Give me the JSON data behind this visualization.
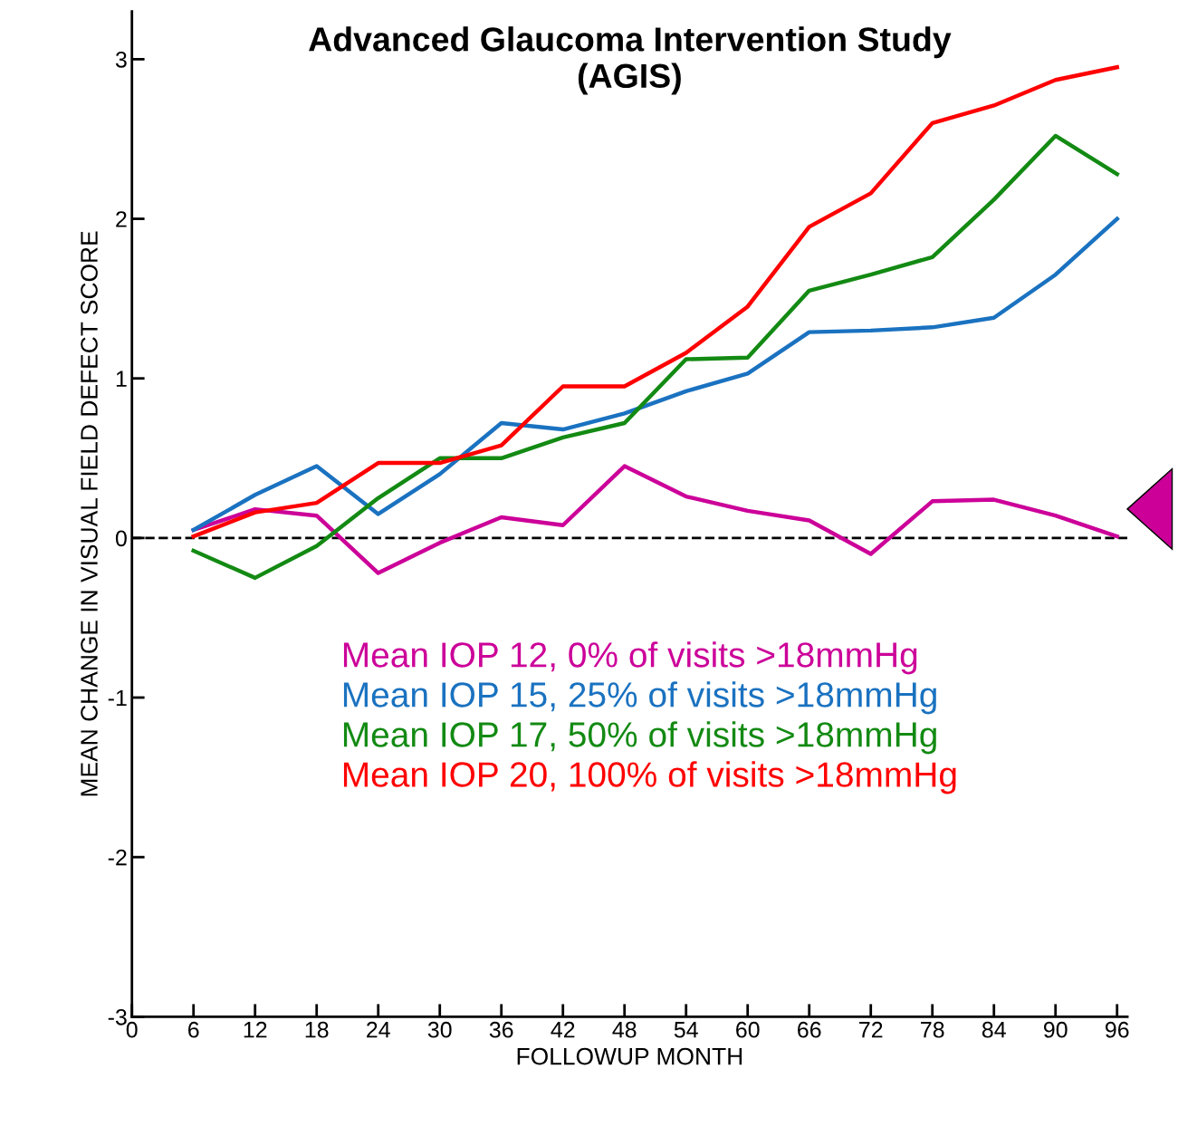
{
  "chart_data": {
    "type": "line",
    "title": "Advanced Glaucoma Intervention Study\n(AGIS)",
    "xlabel": "FOLLOWUP MONTH",
    "ylabel": "MEAN CHANGE IN VISUAL FIELD DEFECT SCORE",
    "x": [
      6,
      12,
      18,
      24,
      30,
      36,
      42,
      48,
      54,
      60,
      66,
      72,
      78,
      84,
      90,
      96
    ],
    "xlim": [
      0,
      97
    ],
    "xticks": [
      0,
      6,
      12,
      18,
      24,
      30,
      36,
      42,
      48,
      54,
      60,
      66,
      72,
      78,
      84,
      90,
      96
    ],
    "ylim": [
      -3,
      3.3
    ],
    "yticks": [
      -3,
      -2,
      -1,
      0,
      1,
      2,
      3
    ],
    "grid": false,
    "legend": "bottom",
    "marker": "none",
    "line_style": "solid",
    "ref_lines": [
      {
        "axis": "y",
        "value": 0,
        "line_style": "dashed",
        "color": "#000000"
      }
    ],
    "series": [
      {
        "name": "Mean IOP 12, 0% of visits >18mmHg",
        "color": "#cc0099",
        "values": [
          0.05,
          0.18,
          0.14,
          -0.22,
          -0.03,
          0.13,
          0.08,
          0.45,
          0.26,
          0.17,
          0.11,
          -0.1,
          0.23,
          0.24,
          0.14,
          0.01
        ]
      },
      {
        "name": "Mean IOP 15, 25% of visits >18mmHg",
        "color": "#1a72c0",
        "values": [
          0.05,
          0.27,
          0.45,
          0.15,
          0.4,
          0.72,
          0.68,
          0.78,
          0.92,
          1.03,
          1.29,
          1.3,
          1.32,
          1.38,
          1.65,
          2.0
        ]
      },
      {
        "name": "Mean IOP 17, 50% of visits >18mmHg",
        "color": "#138a13",
        "values": [
          -0.08,
          -0.25,
          -0.05,
          0.25,
          0.5,
          0.5,
          0.63,
          0.72,
          1.12,
          1.13,
          1.55,
          1.65,
          1.76,
          2.12,
          2.52,
          2.28
        ]
      },
      {
        "name": "Mean IOP 20, 100% of visits >18mmHg",
        "color": "#ff0000",
        "values": [
          0.01,
          0.16,
          0.22,
          0.47,
          0.47,
          0.58,
          0.95,
          0.95,
          1.16,
          1.45,
          1.95,
          2.16,
          2.6,
          2.71,
          2.87,
          2.95
        ]
      }
    ]
  }
}
